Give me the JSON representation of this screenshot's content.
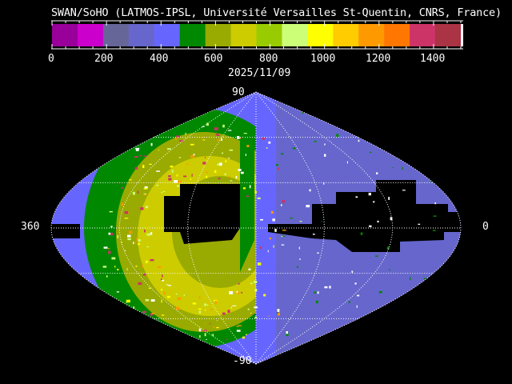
{
  "title": "SWAN/SoHO (LATMOS-IPSL, Université Versailles St-Quentin, CNRS, France)",
  "date": "2025/11/09",
  "chart_data": {
    "type": "heatmap",
    "projection": "sinusoidal all-sky",
    "colorbar": {
      "range": [
        0,
        1500
      ],
      "ticks": [
        "0",
        "200",
        "400",
        "600",
        "800",
        "1000",
        "1200",
        "1400"
      ],
      "tick_values": [
        0,
        200,
        400,
        600,
        800,
        1000,
        1200,
        1400
      ],
      "colors": [
        "#990099",
        "#cc00cc",
        "#666699",
        "#6666cc",
        "#6666ff",
        "#008800",
        "#99aa00",
        "#cccc00",
        "#99cc00",
        "#ccff77",
        "#ffff00",
        "#ffcc00",
        "#ff9900",
        "#ff7700",
        "#cc3366",
        "#aa3344"
      ],
      "overflow_color": "#ffffff"
    },
    "axis_labels": {
      "lat_top": "90",
      "lat_bottom": "-90",
      "lon_left": "360",
      "lon_right": "0"
    },
    "grid": true,
    "no_data_color": "#000000"
  }
}
